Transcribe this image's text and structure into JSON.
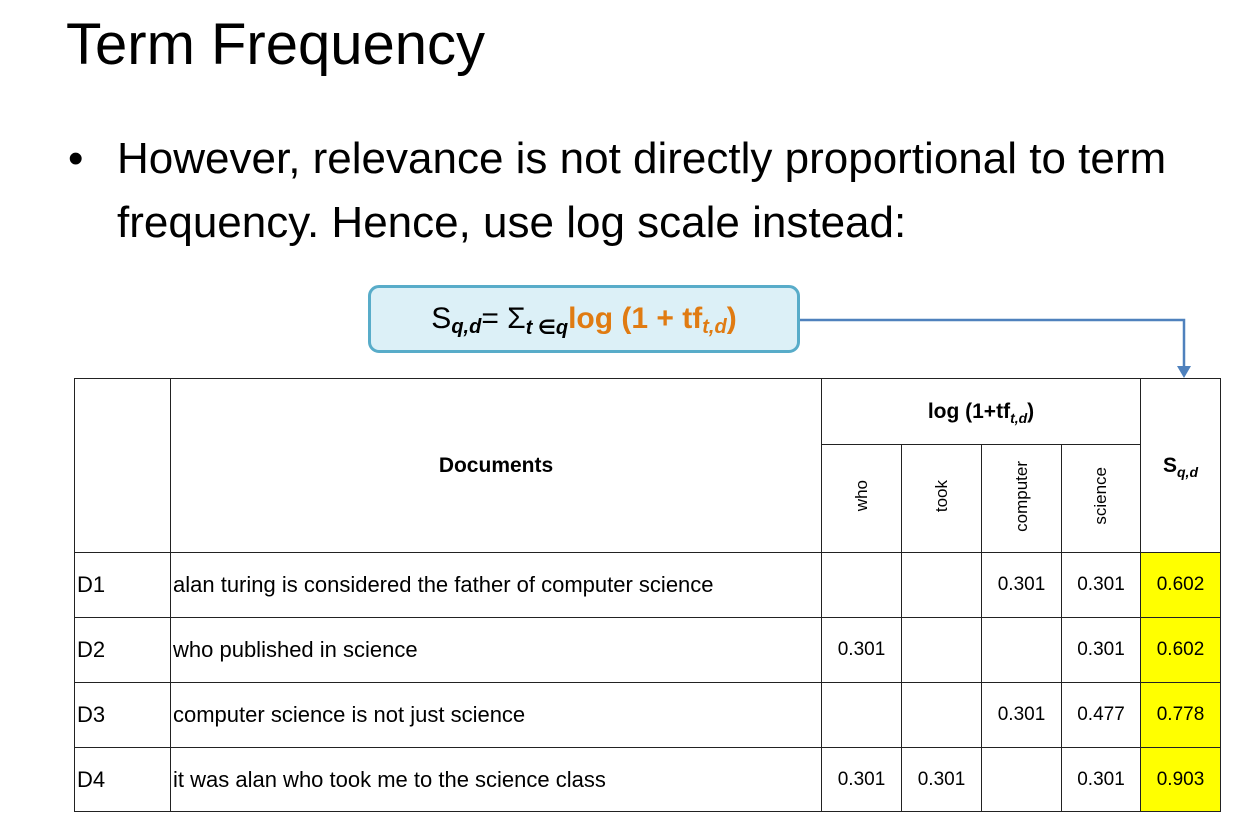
{
  "title": "Term Frequency",
  "bullet": {
    "symbol": "•",
    "text": "However, relevance is not directly proportional to term frequency.  Hence, use log scale instead:"
  },
  "formula": {
    "s": "S",
    "s_sub": "q,d",
    "equals_sum": " = Σ",
    "sum_sub": "t ∈q",
    "log_part": " log (1 + tf",
    "tf_sub": "t,d",
    "close": ")"
  },
  "table": {
    "documents_header": "Documents",
    "log_header": "log (1+tf",
    "log_header_sub": "t,d",
    "log_header_close": ")",
    "terms": [
      "who",
      "took",
      "computer",
      "science"
    ],
    "score_header": "S",
    "score_header_sub": "q,d",
    "rows": [
      {
        "id": "D1",
        "doc": "alan turing is considered the father of computer science",
        "who": "",
        "took": "",
        "computer": "0.301",
        "science": "0.301",
        "score": "0.602"
      },
      {
        "id": "D2",
        "doc": "who published in science",
        "who": "0.301",
        "took": "",
        "computer": "",
        "science": "0.301",
        "score": "0.602"
      },
      {
        "id": "D3",
        "doc": "computer science is not just science",
        "who": "",
        "took": "",
        "computer": "0.301",
        "science": "0.477",
        "score": "0.778"
      },
      {
        "id": "D4",
        "doc": "it was alan who took me to the science class",
        "who": "0.301",
        "took": "0.301",
        "computer": "",
        "science": "0.301",
        "score": "0.903"
      }
    ]
  },
  "colors": {
    "formula_border": "#58acc9",
    "formula_fill": "#dcf0f7",
    "formula_accent": "#e07b12",
    "arrow": "#4f81bd",
    "score_highlight": "#ffff00"
  }
}
